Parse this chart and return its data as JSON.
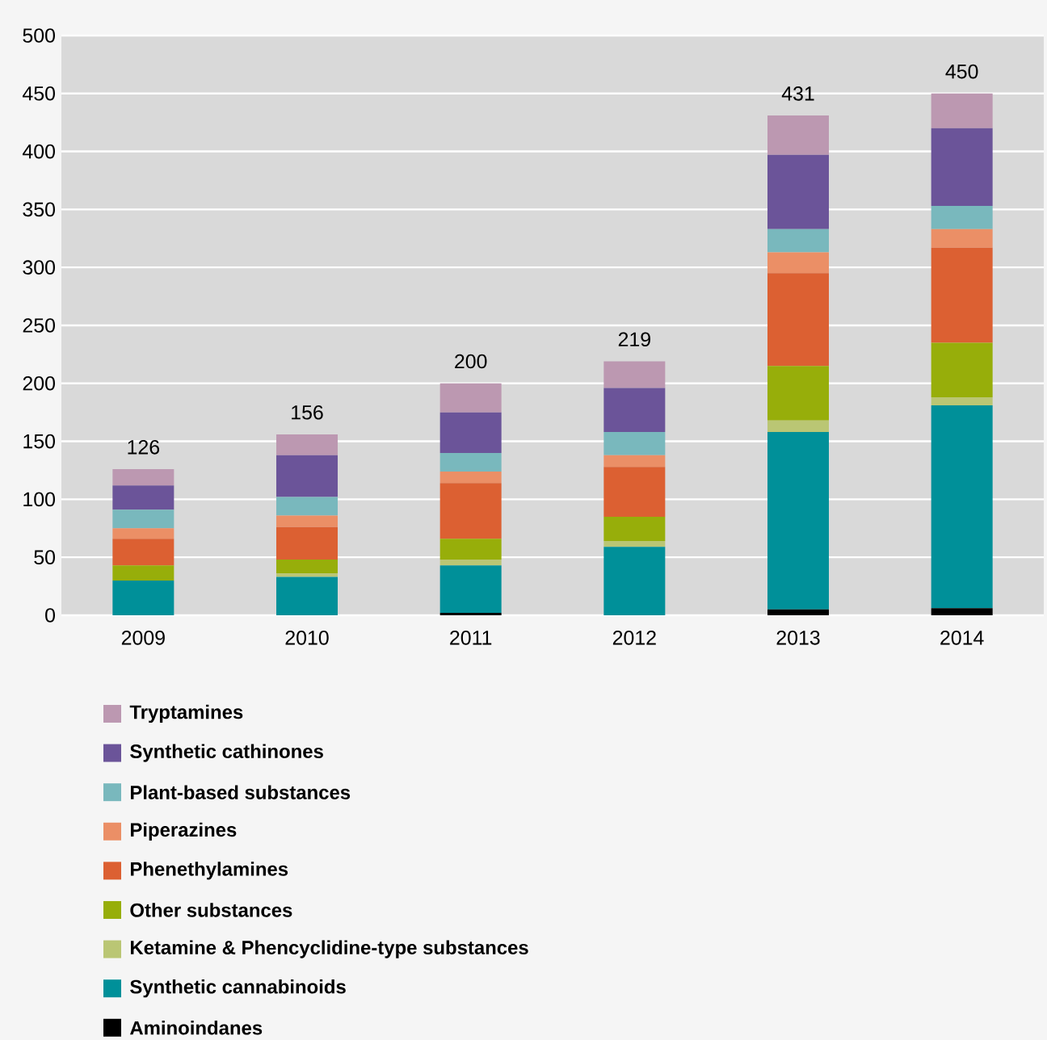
{
  "chart_data": {
    "type": "bar",
    "stacked": true,
    "categories": [
      "2009",
      "2010",
      "2011",
      "2012",
      "2013",
      "2014"
    ],
    "series": [
      {
        "name": "Aminoindanes",
        "color": "#000000",
        "values": [
          0,
          0,
          2,
          0,
          5,
          6
        ]
      },
      {
        "name": "Synthetic cannabinoids",
        "color": "#009099",
        "values": [
          30,
          33,
          41,
          59,
          153,
          175
        ]
      },
      {
        "name": "Ketamine & Phencyclidine-type substances",
        "color": "#bac674",
        "values": [
          0,
          3,
          5,
          5,
          10,
          7
        ]
      },
      {
        "name": "Other substances",
        "color": "#97ae0a",
        "values": [
          13,
          12,
          18,
          21,
          47,
          47
        ]
      },
      {
        "name": "Phenethylamines",
        "color": "#dc6032",
        "values": [
          23,
          28,
          48,
          43,
          80,
          82
        ]
      },
      {
        "name": "Piperazines",
        "color": "#eb8f66",
        "values": [
          9,
          10,
          10,
          10,
          18,
          16
        ]
      },
      {
        "name": "Plant-based substances",
        "color": "#79b8bd",
        "values": [
          16,
          16,
          16,
          20,
          20,
          20
        ]
      },
      {
        "name": "Synthetic cathinones",
        "color": "#6b5499",
        "values": [
          21,
          36,
          35,
          38,
          64,
          67
        ]
      },
      {
        "name": "Tryptamines",
        "color": "#bc98b1",
        "values": [
          14,
          18,
          25,
          23,
          34,
          30
        ]
      }
    ],
    "totals": [
      "126",
      "156",
      "200",
      "219",
      "431",
      "450"
    ],
    "ylim": [
      0,
      500
    ],
    "yticks": [
      0,
      50,
      100,
      150,
      200,
      250,
      300,
      350,
      400,
      450,
      500
    ],
    "grid": "y",
    "legend": "bottom"
  }
}
